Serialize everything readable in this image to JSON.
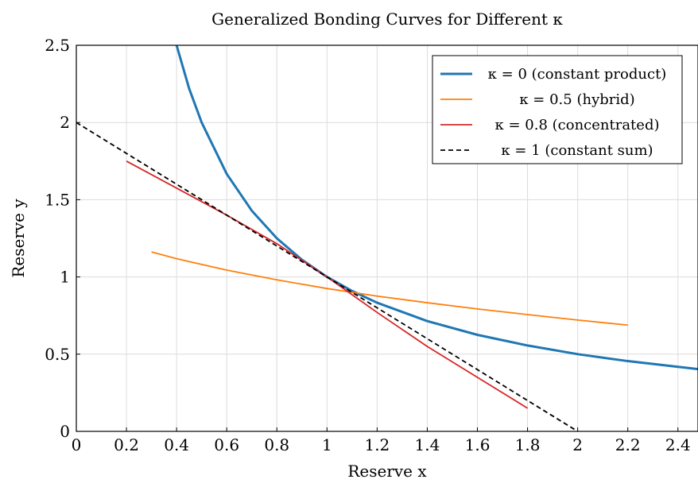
{
  "chart_data": {
    "type": "line",
    "title": "Generalized Bonding Curves for Different κ",
    "xlabel": "Reserve x",
    "ylabel": "Reserve y",
    "xlim": [
      0,
      2.48
    ],
    "ylim": [
      0,
      2.5
    ],
    "xticks": [
      0,
      0.2,
      0.4,
      0.6,
      0.8,
      1,
      1.2,
      1.4,
      1.6,
      1.8,
      2,
      2.2,
      2.4
    ],
    "xtick_labels": [
      "0",
      "0.2",
      "0.4",
      "0.6",
      "0.8",
      "1",
      "1.2",
      "1.4",
      "1.6",
      "1.8",
      "2",
      "2.2",
      "2.4"
    ],
    "yticks": [
      0,
      0.5,
      1,
      1.5,
      2,
      2.5
    ],
    "ytick_labels": [
      "0",
      "0.5",
      "1",
      "1.5",
      "2",
      "2.5"
    ],
    "grid": true,
    "legend_position": "top-right",
    "series": [
      {
        "name": "κ = 0 (constant product)",
        "color": "#1f77b4",
        "style": "solid",
        "thick": true,
        "points": [
          [
            0.4,
            2.5
          ],
          [
            0.45,
            2.22
          ],
          [
            0.5,
            2.0
          ],
          [
            0.6,
            1.667
          ],
          [
            0.7,
            1.429
          ],
          [
            0.8,
            1.25
          ],
          [
            0.9,
            1.111
          ],
          [
            1.0,
            1.0
          ],
          [
            1.1,
            0.909
          ],
          [
            1.2,
            0.833
          ],
          [
            1.4,
            0.714
          ],
          [
            1.6,
            0.625
          ],
          [
            1.8,
            0.556
          ],
          [
            2.0,
            0.5
          ],
          [
            2.2,
            0.455
          ],
          [
            2.48,
            0.403
          ]
        ]
      },
      {
        "name": "κ = 0.5 (hybrid)",
        "color": "#ff7f0e",
        "style": "solid",
        "thick": false,
        "points": [
          [
            0.3,
            1.162
          ],
          [
            0.4,
            1.118
          ],
          [
            0.6,
            1.044
          ],
          [
            0.8,
            0.981
          ],
          [
            1.0,
            0.925
          ],
          [
            1.2,
            0.876
          ],
          [
            1.4,
            0.833
          ],
          [
            1.6,
            0.793
          ],
          [
            1.8,
            0.756
          ],
          [
            2.0,
            0.721
          ],
          [
            2.2,
            0.688
          ]
        ]
      },
      {
        "name": "κ = 0.8 (concentrated)",
        "color": "#d62728",
        "style": "solid",
        "thick": false,
        "points": [
          [
            0.2,
            1.75
          ],
          [
            0.4,
            1.575
          ],
          [
            0.6,
            1.4
          ],
          [
            0.8,
            1.215
          ],
          [
            1.0,
            1.0
          ],
          [
            1.2,
            0.77
          ],
          [
            1.4,
            0.55
          ],
          [
            1.6,
            0.35
          ],
          [
            1.8,
            0.15
          ]
        ]
      },
      {
        "name": "κ = 1 (constant sum)",
        "color": "#000000",
        "style": "dashed",
        "thick": false,
        "points": [
          [
            0,
            2
          ],
          [
            2,
            0
          ]
        ]
      }
    ]
  }
}
